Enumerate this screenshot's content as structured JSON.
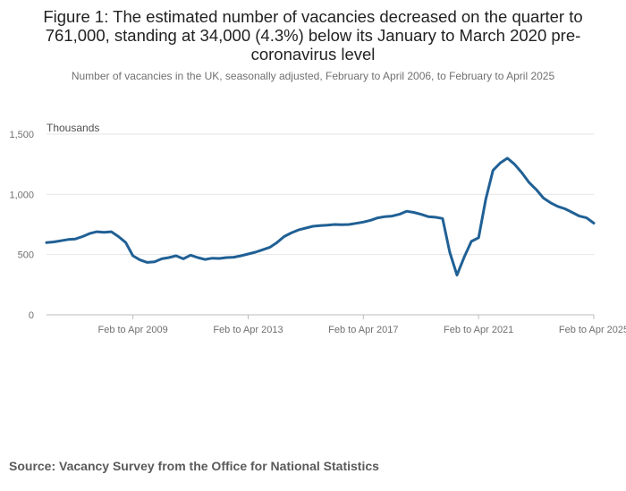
{
  "title": "Figure 1: The estimated number of vacancies decreased on the quarter to 761,000, standing at 34,000 (4.3%) below its January to March 2020 pre-coronavirus level",
  "subtitle": "Number of vacancies in the UK, seasonally adjusted, February to April 2006, to February to April 2025",
  "source": "Source: Vacancy Survey from the Office for National Statistics",
  "chart_data": {
    "type": "line",
    "ylabel": "Thousands",
    "ylim": [
      0,
      1500
    ],
    "yticks": [
      0,
      500,
      1000,
      1500
    ],
    "ytick_labels": [
      "0",
      "500",
      "1,000",
      "1,500"
    ],
    "xlim": [
      2006.25,
      2025.25
    ],
    "xticks": [
      2009.25,
      2013.25,
      2017.25,
      2021.25,
      2025.25
    ],
    "xtick_labels": [
      "Feb to Apr 2009",
      "Feb to Apr 2013",
      "Feb to Apr 2017",
      "Feb to Apr 2021",
      "Feb to Apr 2025"
    ],
    "grid": true,
    "line_color": "#206095",
    "series": [
      {
        "name": "",
        "points": [
          [
            2006.25,
            600
          ],
          [
            2006.5,
            605
          ],
          [
            2006.75,
            615
          ],
          [
            2007.0,
            625
          ],
          [
            2007.25,
            630
          ],
          [
            2007.5,
            650
          ],
          [
            2007.75,
            675
          ],
          [
            2008.0,
            690
          ],
          [
            2008.25,
            685
          ],
          [
            2008.5,
            690
          ],
          [
            2008.75,
            650
          ],
          [
            2009.0,
            600
          ],
          [
            2009.25,
            490
          ],
          [
            2009.5,
            455
          ],
          [
            2009.75,
            435
          ],
          [
            2010.0,
            440
          ],
          [
            2010.25,
            465
          ],
          [
            2010.5,
            475
          ],
          [
            2010.75,
            490
          ],
          [
            2011.0,
            465
          ],
          [
            2011.25,
            495
          ],
          [
            2011.5,
            475
          ],
          [
            2011.75,
            460
          ],
          [
            2012.0,
            470
          ],
          [
            2012.25,
            468
          ],
          [
            2012.5,
            475
          ],
          [
            2012.75,
            478
          ],
          [
            2013.0,
            490
          ],
          [
            2013.25,
            505
          ],
          [
            2013.5,
            520
          ],
          [
            2013.75,
            540
          ],
          [
            2014.0,
            560
          ],
          [
            2014.25,
            600
          ],
          [
            2014.5,
            650
          ],
          [
            2014.75,
            680
          ],
          [
            2015.0,
            705
          ],
          [
            2015.25,
            720
          ],
          [
            2015.5,
            735
          ],
          [
            2015.75,
            740
          ],
          [
            2016.0,
            745
          ],
          [
            2016.25,
            750
          ],
          [
            2016.5,
            748
          ],
          [
            2016.75,
            750
          ],
          [
            2017.0,
            760
          ],
          [
            2017.25,
            770
          ],
          [
            2017.5,
            785
          ],
          [
            2017.75,
            805
          ],
          [
            2018.0,
            815
          ],
          [
            2018.25,
            820
          ],
          [
            2018.5,
            835
          ],
          [
            2018.75,
            860
          ],
          [
            2019.0,
            850
          ],
          [
            2019.25,
            835
          ],
          [
            2019.5,
            815
          ],
          [
            2019.75,
            810
          ],
          [
            2020.0,
            800
          ],
          [
            2020.25,
            520
          ],
          [
            2020.5,
            330
          ],
          [
            2020.75,
            480
          ],
          [
            2021.0,
            610
          ],
          [
            2021.25,
            640
          ],
          [
            2021.5,
            960
          ],
          [
            2021.75,
            1200
          ],
          [
            2022.0,
            1260
          ],
          [
            2022.25,
            1300
          ],
          [
            2022.5,
            1250
          ],
          [
            2022.75,
            1180
          ],
          [
            2023.0,
            1100
          ],
          [
            2023.25,
            1040
          ],
          [
            2023.5,
            970
          ],
          [
            2023.75,
            930
          ],
          [
            2024.0,
            900
          ],
          [
            2024.25,
            880
          ],
          [
            2024.5,
            850
          ],
          [
            2024.75,
            820
          ],
          [
            2025.0,
            805
          ],
          [
            2025.25,
            761
          ]
        ]
      }
    ]
  }
}
